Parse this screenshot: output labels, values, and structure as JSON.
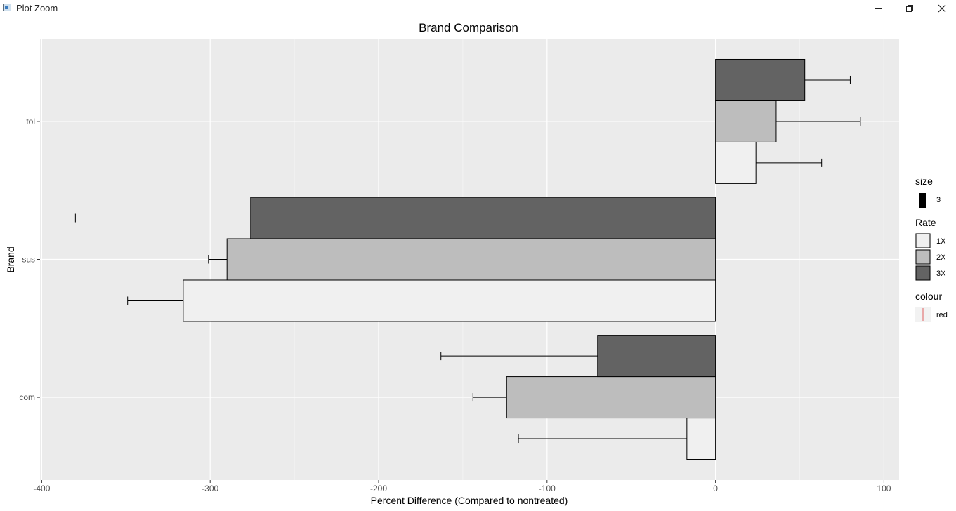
{
  "window": {
    "title": "Plot Zoom",
    "buttons": [
      {
        "name": "minimize-button",
        "icon": "minimize-icon"
      },
      {
        "name": "restore-button",
        "icon": "restore-icon"
      },
      {
        "name": "close-button",
        "icon": "close-icon"
      }
    ]
  },
  "chart_data": {
    "type": "bar",
    "orientation": "horizontal",
    "title": "Brand Comparison",
    "xlabel": "Percent Difference (Compared to nontreated)",
    "ylabel": "Brand",
    "categories": [
      "com",
      "sus",
      "tol"
    ],
    "xlim": [
      -401,
      109
    ],
    "x_ticks": [
      -400,
      -300,
      -200,
      -100,
      0,
      100
    ],
    "grid": true,
    "panel_background": "#ebebeb",
    "series": [
      {
        "name": "1X",
        "color": "#f0f0f0",
        "values": [
          -17,
          -316,
          24
        ],
        "error_ends": [
          -117,
          -349,
          63
        ]
      },
      {
        "name": "2X",
        "color": "#bdbdbd",
        "values": [
          -124,
          -290,
          36
        ],
        "error_ends": [
          -144,
          -301,
          86
        ]
      },
      {
        "name": "3X",
        "color": "#636363",
        "values": [
          -70,
          -276,
          53
        ],
        "error_ends": [
          -163,
          -380,
          80
        ]
      }
    ],
    "legends": [
      {
        "title": "size",
        "items": [
          {
            "label": "3",
            "kind": "size"
          }
        ]
      },
      {
        "title": "Rate",
        "items": [
          {
            "label": "1X",
            "color": "#f0f0f0"
          },
          {
            "label": "2X",
            "color": "#bdbdbd"
          },
          {
            "label": "3X",
            "color": "#636363"
          }
        ]
      },
      {
        "title": "colour",
        "items": [
          {
            "label": "red",
            "kind": "line",
            "color": "#e06060"
          }
        ]
      }
    ],
    "legend_position": "right"
  }
}
